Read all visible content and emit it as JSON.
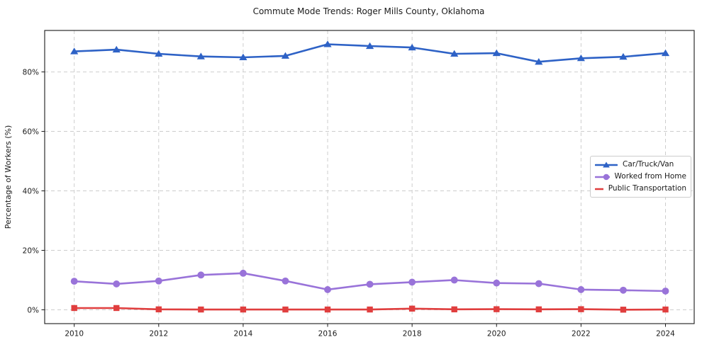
{
  "chart_data": {
    "type": "line",
    "title": "Commute Mode Trends: Roger Mills County, Oklahoma",
    "xlabel": "",
    "ylabel": "Percentage of Workers (%)",
    "x": [
      2010,
      2011,
      2012,
      2013,
      2014,
      2015,
      2016,
      2017,
      2018,
      2019,
      2020,
      2021,
      2022,
      2023,
      2024
    ],
    "series": [
      {
        "name": "Car/Truck/Van",
        "color": "#2e62c6",
        "marker": "triangle",
        "values": [
          86.9,
          87.5,
          86.1,
          85.2,
          84.9,
          85.4,
          89.3,
          88.7,
          88.2,
          86.1,
          86.3,
          83.4,
          84.6,
          85.1,
          86.3
        ]
      },
      {
        "name": "Worked from Home",
        "color": "#9973d9",
        "marker": "circle",
        "values": [
          9.6,
          8.7,
          9.7,
          11.7,
          12.3,
          9.7,
          6.8,
          8.6,
          9.3,
          10.0,
          9.0,
          8.8,
          6.8,
          6.6,
          6.3
        ]
      },
      {
        "name": "Public Transportation",
        "color": "#e03e3e",
        "marker": "square",
        "values": [
          0.6,
          0.6,
          0.15,
          0.1,
          0.1,
          0.1,
          0.1,
          0.1,
          0.4,
          0.15,
          0.2,
          0.15,
          0.2,
          0.05,
          0.1
        ]
      }
    ],
    "xlim": [
      2009.3,
      2024.68
    ],
    "ylim": [
      -4.65,
      93.95
    ],
    "xticks": [
      2010,
      2012,
      2014,
      2016,
      2018,
      2020,
      2022,
      2024
    ],
    "xtick_labels": [
      "2010",
      "2012",
      "2014",
      "2016",
      "2018",
      "2020",
      "2022",
      "2024"
    ],
    "yticks": [
      0,
      20,
      40,
      60,
      80
    ],
    "ytick_labels": [
      "0%",
      "20%",
      "40%",
      "60%",
      "80%"
    ],
    "grid": true,
    "grid_style": "dashed",
    "legend_position": "center-right"
  },
  "style": {
    "grid_color": "#cdcdcd",
    "spine_color": "#1a1a1a",
    "background": "#ffffff"
  }
}
